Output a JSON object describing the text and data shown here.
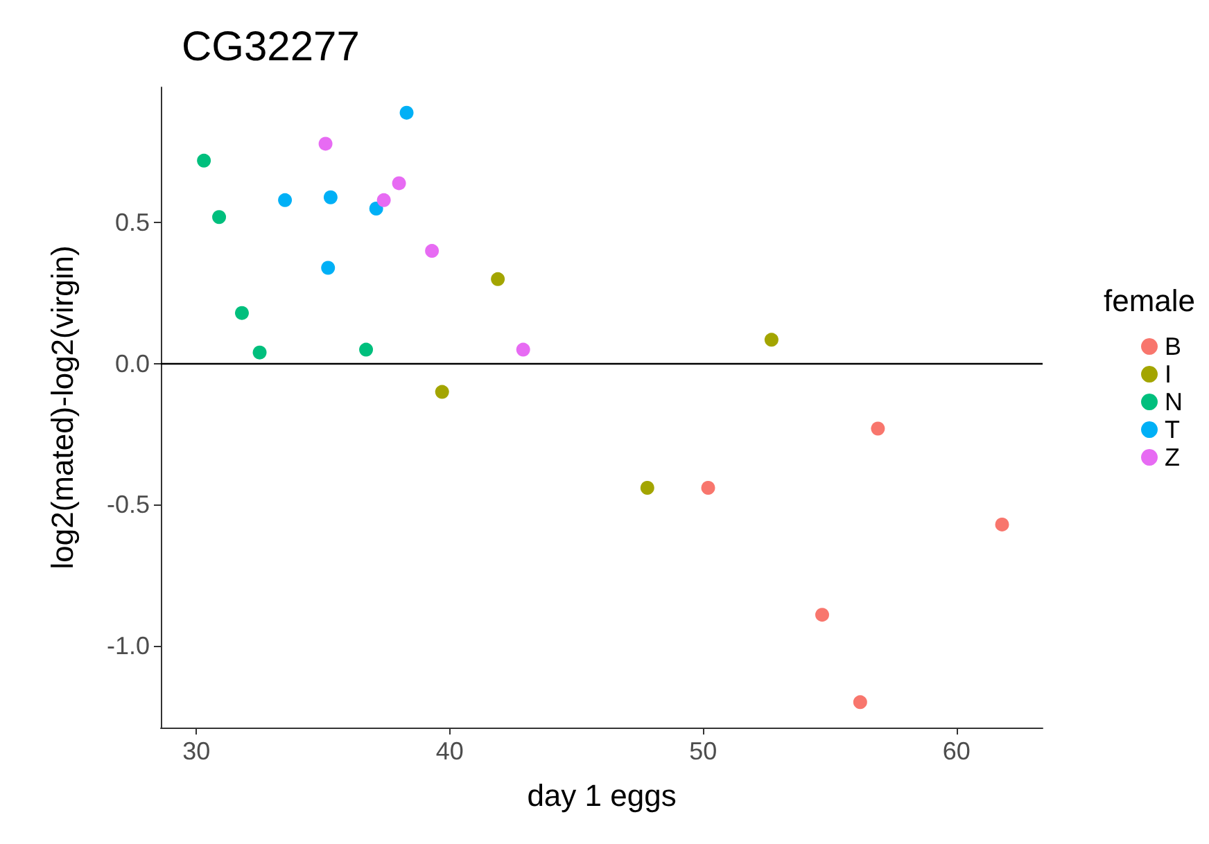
{
  "chart_data": {
    "type": "scatter",
    "title": "CG32277",
    "xlabel": "day 1 eggs",
    "ylabel": "log2(mated)-log2(virgin)",
    "legend_title": "female",
    "legend": "right",
    "marker": "circle",
    "grid": false,
    "xlim": [
      28.6,
      63.4
    ],
    "xticks": [
      30,
      40,
      50,
      60
    ],
    "ylim": [
      -1.29,
      0.98
    ],
    "yticks": [
      {
        "value": -1,
        "label": "-1.0"
      },
      {
        "value": -0.5,
        "label": "-0.5"
      },
      {
        "value": 0,
        "label": "0.0"
      },
      {
        "value": 0.5,
        "label": "0.5"
      }
    ],
    "ref_lines": [
      {
        "axis": "y",
        "value": 0,
        "label": null,
        "color": "#000000"
      }
    ],
    "series": [
      {
        "name": "B",
        "color": "#f8766d",
        "x": [
          50.2,
          56.9,
          54.7,
          61.8,
          56.2
        ],
        "values": [
          -0.44,
          -0.23,
          -0.89,
          -0.57,
          -1.2
        ]
      },
      {
        "name": "I",
        "color": "#a3a500",
        "x": [
          41.9,
          39.7,
          52.7,
          47.8
        ],
        "values": [
          0.3,
          -0.1,
          0.085,
          -0.44
        ]
      },
      {
        "name": "N",
        "color": "#00bf7d",
        "x": [
          30.3,
          30.9,
          31.8,
          32.5,
          36.7
        ],
        "values": [
          0.72,
          0.52,
          0.18,
          0.04,
          0.05
        ]
      },
      {
        "name": "T",
        "color": "#00b0f6",
        "x": [
          38.3,
          33.5,
          35.3,
          35.2,
          37.1
        ],
        "values": [
          0.89,
          0.58,
          0.59,
          0.34,
          0.55
        ]
      },
      {
        "name": "Z",
        "color": "#e76bf3",
        "x": [
          35.1,
          38.0,
          37.4,
          39.3,
          42.9
        ],
        "values": [
          0.78,
          0.64,
          0.58,
          0.4,
          0.05
        ]
      }
    ]
  }
}
